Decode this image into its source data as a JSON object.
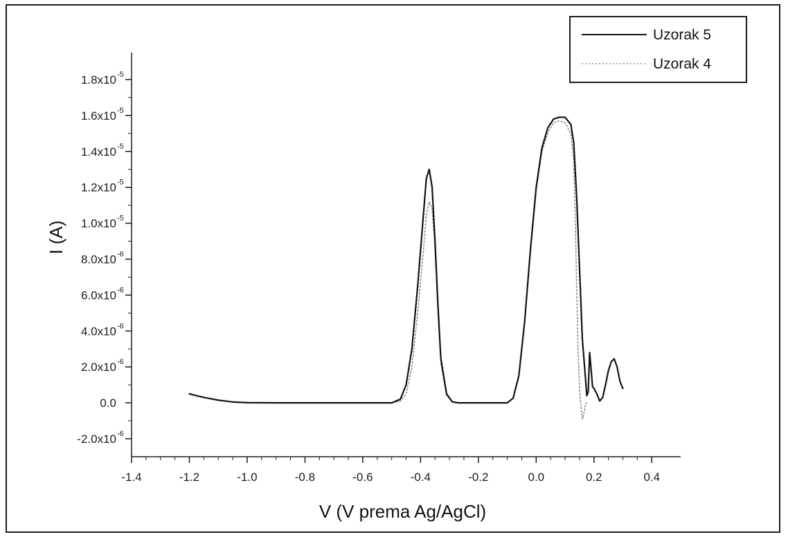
{
  "chart_data": {
    "type": "line",
    "xlabel": "V (V prema Ag/AgCl)",
    "ylabel": "I (A)",
    "xlim": [
      -1.4,
      0.5
    ],
    "ylim": [
      -3e-06,
      1.95e-05
    ],
    "x_ticks": [
      {
        "value": -1.4,
        "label": "-1.4"
      },
      {
        "value": -1.2,
        "label": "-1.2"
      },
      {
        "value": -1.0,
        "label": "-1.0"
      },
      {
        "value": -0.8,
        "label": "-0.8"
      },
      {
        "value": -0.6,
        "label": "-0.6"
      },
      {
        "value": -0.4,
        "label": "-0.4"
      },
      {
        "value": -0.2,
        "label": "-0.2"
      },
      {
        "value": 0.0,
        "label": "0.0"
      },
      {
        "value": 0.2,
        "label": "0.2"
      },
      {
        "value": 0.4,
        "label": "0.4"
      }
    ],
    "y_ticks": [
      {
        "value": -2e-06,
        "mantissa": "-2.0x10",
        "exp": "-6"
      },
      {
        "value": 0,
        "mantissa": "0.0",
        "exp": ""
      },
      {
        "value": 2e-06,
        "mantissa": "2.0x10",
        "exp": "-6"
      },
      {
        "value": 4e-06,
        "mantissa": "4.0x10",
        "exp": "-6"
      },
      {
        "value": 6e-06,
        "mantissa": "6.0x10",
        "exp": "-6"
      },
      {
        "value": 8e-06,
        "mantissa": "8.0x10",
        "exp": "-6"
      },
      {
        "value": 1e-05,
        "mantissa": "1.0x10",
        "exp": "-5"
      },
      {
        "value": 1.2e-05,
        "mantissa": "1.2x10",
        "exp": "-5"
      },
      {
        "value": 1.4e-05,
        "mantissa": "1.4x10",
        "exp": "-5"
      },
      {
        "value": 1.6e-05,
        "mantissa": "1.6x10",
        "exp": "-5"
      },
      {
        "value": 1.8e-05,
        "mantissa": "1.8x10",
        "exp": "-5"
      }
    ],
    "grid": false,
    "legend_position": "top-right",
    "series": [
      {
        "name": "Uzorak 5",
        "style": "solid",
        "color": "#111111",
        "x": [
          -1.2,
          -1.15,
          -1.1,
          -1.05,
          -1.0,
          -0.9,
          -0.8,
          -0.6,
          -0.5,
          -0.47,
          -0.45,
          -0.43,
          -0.41,
          -0.39,
          -0.38,
          -0.37,
          -0.36,
          -0.35,
          -0.34,
          -0.33,
          -0.31,
          -0.29,
          -0.27,
          -0.25,
          -0.2,
          -0.1,
          -0.08,
          -0.06,
          -0.04,
          -0.02,
          0.0,
          0.02,
          0.04,
          0.06,
          0.08,
          0.1,
          0.12,
          0.13,
          0.14,
          0.15,
          0.16,
          0.17,
          0.175,
          0.18,
          0.185,
          0.19,
          0.195,
          0.2,
          0.21,
          0.22,
          0.23,
          0.24,
          0.25,
          0.26,
          0.27,
          0.28,
          0.29,
          0.3
        ],
        "y": [
          5e-07,
          3e-07,
          1.5e-07,
          5e-08,
          1e-08,
          0,
          0,
          0,
          0,
          2e-07,
          1e-06,
          3e-06,
          6.5e-06,
          1.05e-05,
          1.25e-05,
          1.3e-05,
          1.2e-05,
          9e-06,
          5.5e-06,
          2.5e-06,
          5e-07,
          5e-08,
          0,
          0,
          0,
          0,
          2.5e-07,
          1.5e-06,
          4.5e-06,
          8.5e-06,
          1.2e-05,
          1.42e-05,
          1.53e-05,
          1.58e-05,
          1.59e-05,
          1.59e-05,
          1.55e-05,
          1.45e-05,
          1.15e-05,
          7.5e-06,
          3.5e-06,
          1.5e-06,
          4e-07,
          6e-07,
          2.8e-06,
          1.9e-06,
          9e-07,
          8e-07,
          5e-07,
          1e-07,
          3e-07,
          1e-06,
          1.8e-06,
          2.3e-06,
          2.45e-06,
          2e-06,
          1.2e-06,
          8e-07
        ]
      },
      {
        "name": "Uzorak 4",
        "style": "dotted",
        "color": "#8c8c8c",
        "x": [
          -1.2,
          -1.15,
          -1.1,
          -1.05,
          -1.0,
          -0.9,
          -0.8,
          -0.6,
          -0.5,
          -0.47,
          -0.45,
          -0.43,
          -0.41,
          -0.39,
          -0.38,
          -0.37,
          -0.36,
          -0.35,
          -0.34,
          -0.33,
          -0.31,
          -0.29,
          -0.27,
          -0.25,
          -0.2,
          -0.1,
          -0.08,
          -0.06,
          -0.04,
          -0.02,
          0.0,
          0.02,
          0.04,
          0.06,
          0.08,
          0.1,
          0.12,
          0.13,
          0.135,
          0.14,
          0.145,
          0.15,
          0.155,
          0.16,
          0.165,
          0.17,
          0.175
        ],
        "y": [
          5e-07,
          3e-07,
          1.5e-07,
          5e-08,
          1e-08,
          0,
          0,
          0,
          0,
          1e-07,
          5e-07,
          2e-06,
          5e-06,
          8.5e-06,
          1.05e-05,
          1.12e-05,
          1.08e-05,
          8.5e-06,
          5e-06,
          2.2e-06,
          4e-07,
          5e-08,
          0,
          0,
          0,
          0,
          2.5e-07,
          1.5e-06,
          4.5e-06,
          8.3e-06,
          1.18e-05,
          1.4e-05,
          1.5e-05,
          1.56e-05,
          1.57e-05,
          1.56e-05,
          1.5e-05,
          1.35e-05,
          1.05e-05,
          6.5e-06,
          3e-06,
          8e-07,
          -2e-07,
          -9e-07,
          -6e-07,
          -1e-07,
          0
        ]
      }
    ]
  }
}
